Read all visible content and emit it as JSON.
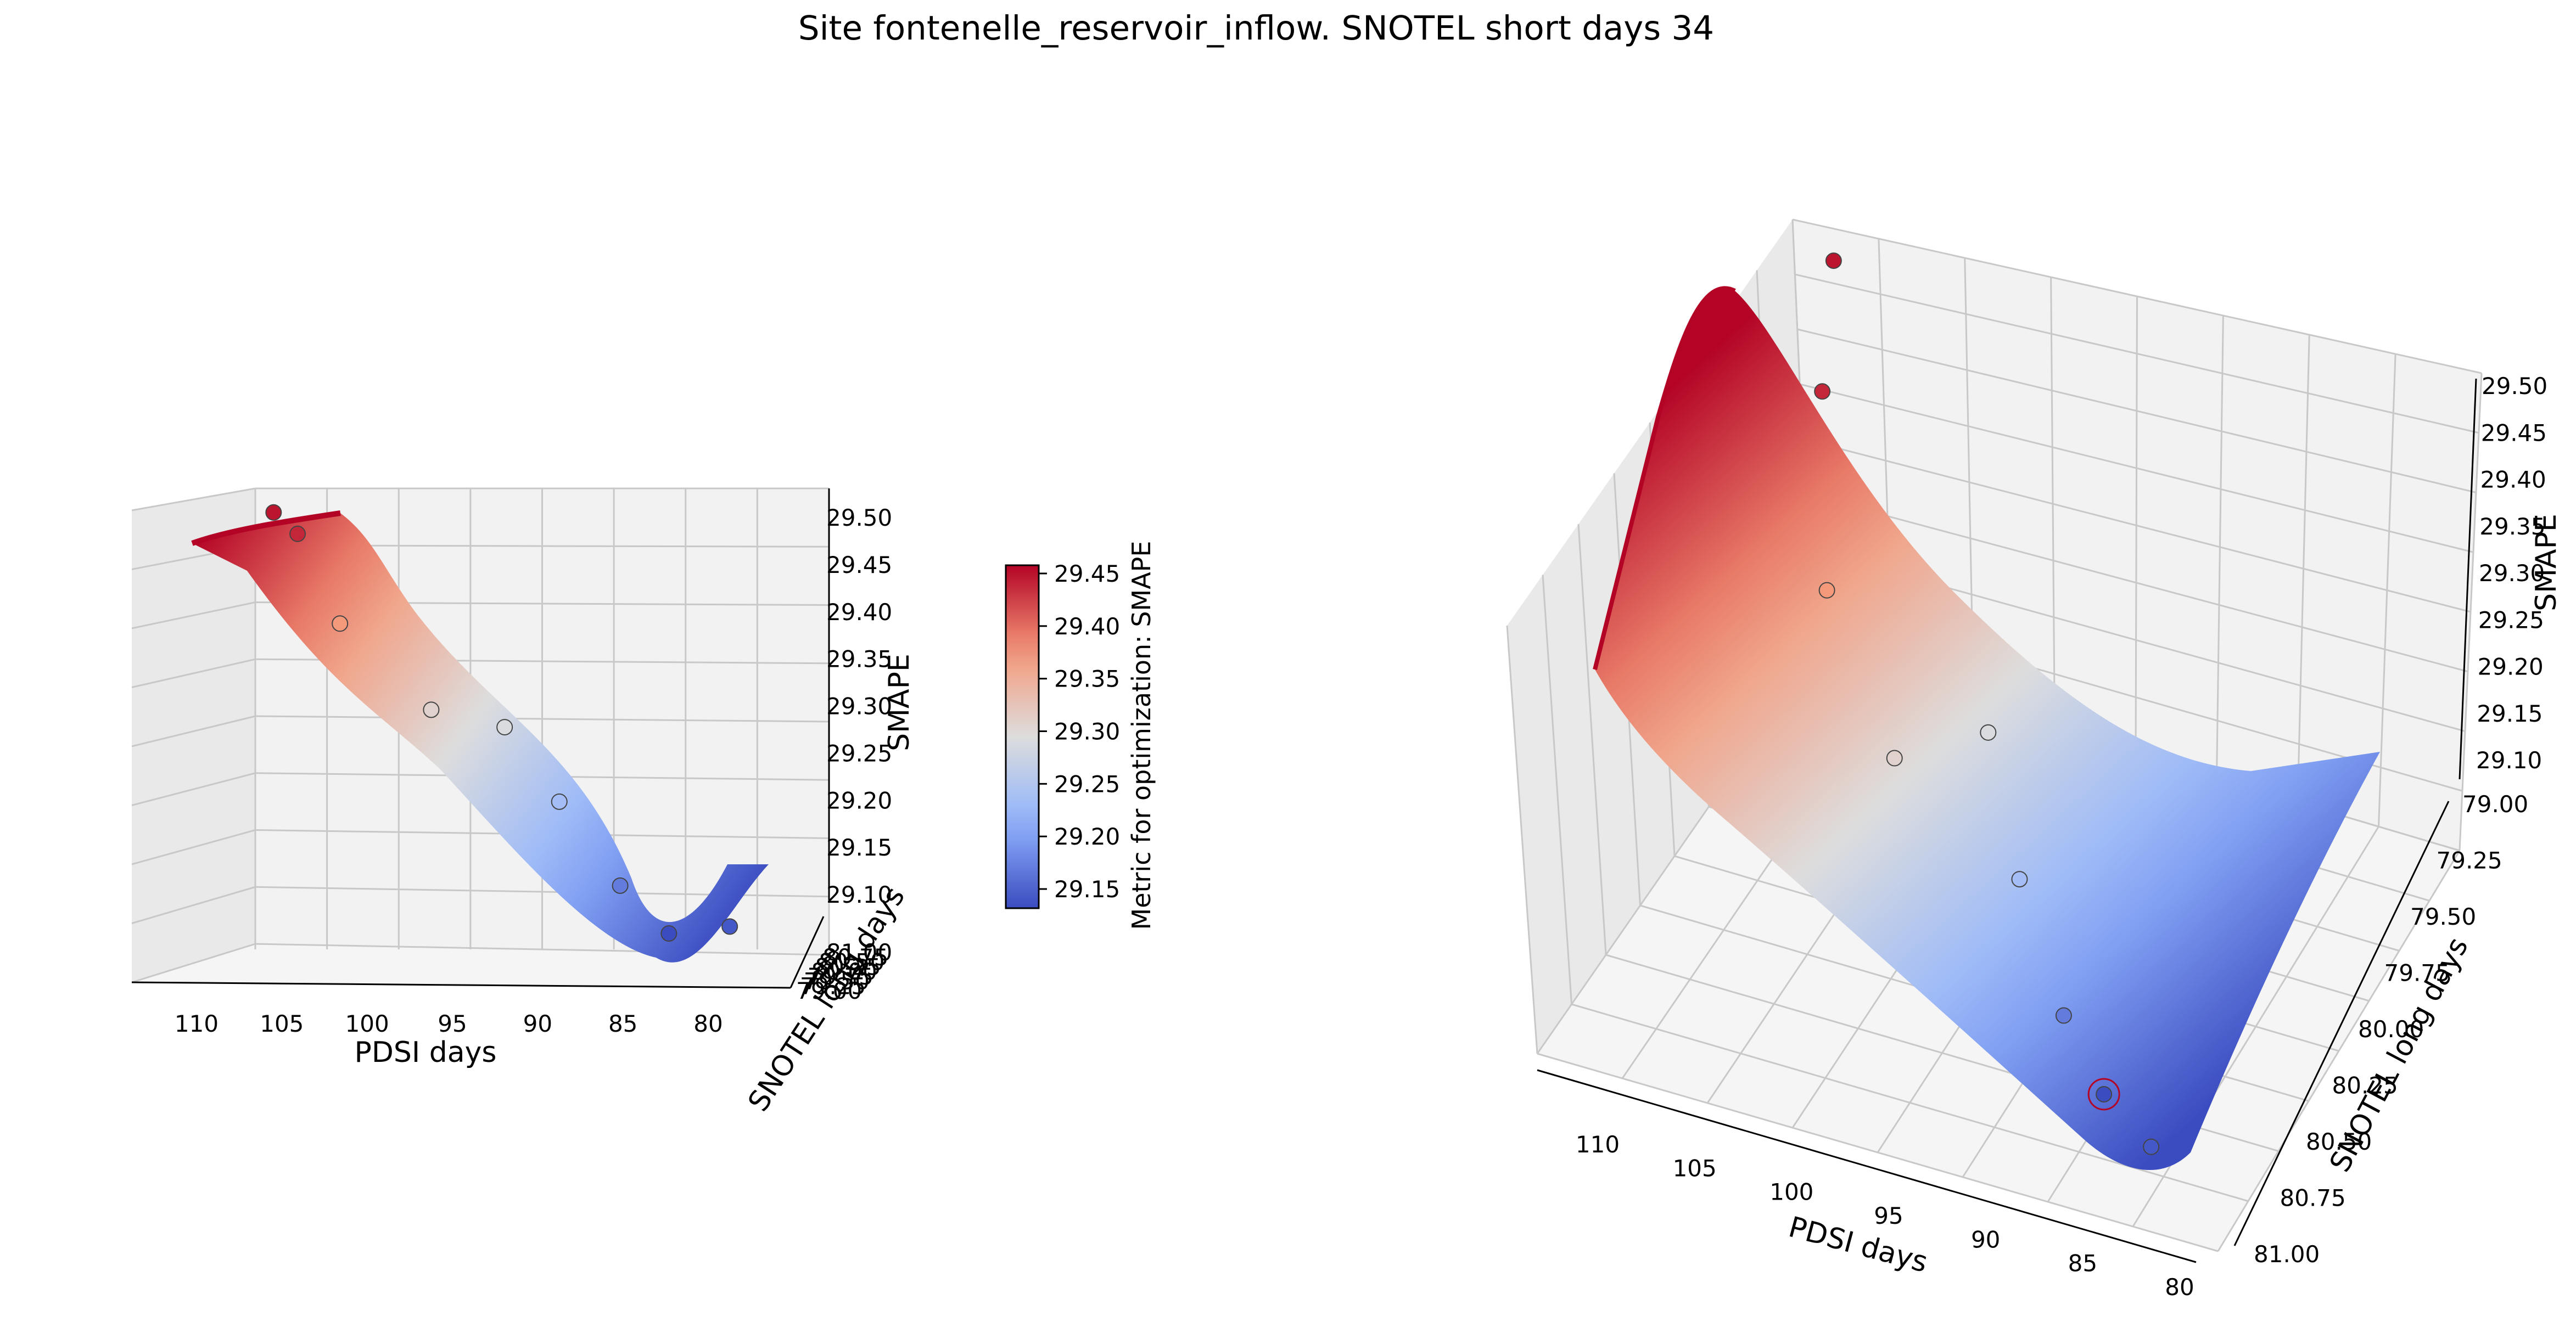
{
  "chart_data": {
    "type": "surface3d",
    "title": "Site fontenelle_reservoir_inflow. SNOTEL short days 34",
    "colormap": "coolwarm",
    "pdsi_range": [
      77,
      113
    ],
    "snotel_range": [
      79.0,
      81.0
    ],
    "smape_range": [
      29.07,
      29.5
    ],
    "smape_ticks": [
      "29.10",
      "29.15",
      "29.20",
      "29.25",
      "29.30",
      "29.35",
      "29.40",
      "29.45",
      "29.50"
    ],
    "pdsi_ticks": [
      "80",
      "85",
      "90",
      "95",
      "100",
      "105",
      "110"
    ],
    "snotel_ticks_left": [
      "79.00",
      "79.25",
      "79.50",
      "79.75",
      "80.00",
      "80.25",
      "80.50",
      "80.75",
      "81.00"
    ],
    "snotel_ticks_right": [
      "79.00",
      "79.25",
      "79.50",
      "79.75",
      "80.00",
      "80.25",
      "80.50",
      "80.75",
      "81.00"
    ],
    "colorbar": {
      "label": "Metric for optimization: SMAPE",
      "ticks": [
        "29.15",
        "29.20",
        "29.25",
        "29.30",
        "29.35",
        "29.40",
        "29.45"
      ],
      "range": [
        29.11,
        29.46
      ]
    },
    "points": [
      {
        "pdsi": 112,
        "snotel": 79.0,
        "smape": 29.45
      },
      {
        "pdsi": 109,
        "snotel": 79.5,
        "smape": 29.44
      },
      {
        "pdsi": 105,
        "snotel": 80.0,
        "smape": 29.37
      },
      {
        "pdsi": 99,
        "snotel": 80.3,
        "smape": 29.3
      },
      {
        "pdsi": 96,
        "snotel": 80.0,
        "smape": 29.28
      },
      {
        "pdsi": 92,
        "snotel": 80.3,
        "smape": 29.22
      },
      {
        "pdsi": 88,
        "snotel": 80.5,
        "smape": 29.15
      },
      {
        "pdsi": 85,
        "snotel": 80.6,
        "smape": 29.11,
        "best": true
      },
      {
        "pdsi": 81,
        "snotel": 80.8,
        "smape": 29.12
      }
    ],
    "left_plot": {
      "xlabel": "PDSI days",
      "ylabel": "SNOTEL long days",
      "zlabel": "SMAPE"
    },
    "right_plot": {
      "xlabel": "PDSI days",
      "ylabel": "SNOTEL long days",
      "zlabel": "SMAPE"
    }
  }
}
